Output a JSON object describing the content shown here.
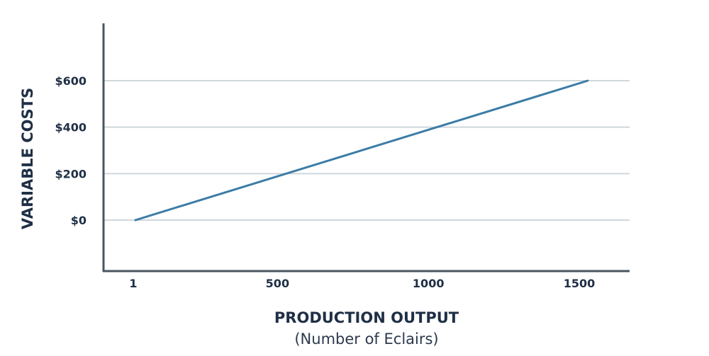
{
  "chart_data": {
    "type": "line",
    "title": "",
    "xlabel": "PRODUCTION OUTPUT",
    "xlabel_sub": "(Number of Eclairs)",
    "ylabel": "VARIABLE COSTS",
    "x_ticks": [
      {
        "value": 1,
        "label": "1"
      },
      {
        "value": 500,
        "label": "500"
      },
      {
        "value": 1000,
        "label": "1000"
      },
      {
        "value": 1500,
        "label": "1500"
      }
    ],
    "y_ticks": [
      {
        "value": 0,
        "label": "$0"
      },
      {
        "value": 200,
        "label": "$200"
      },
      {
        "value": 400,
        "label": "$400"
      },
      {
        "value": 600,
        "label": "$600"
      }
    ],
    "xlim": [
      1,
      1500
    ],
    "ylim": [
      -225,
      850
    ],
    "grid": "horizontal",
    "series": [
      {
        "x": [
          1,
          1500
        ],
        "y": [
          0,
          600
        ]
      }
    ],
    "colors": {
      "line": "#3b7ca6",
      "grid": "#cfd8db",
      "axis": "#4a5560",
      "text": "#1f2f45",
      "subtext": "#2c3a4e"
    }
  }
}
